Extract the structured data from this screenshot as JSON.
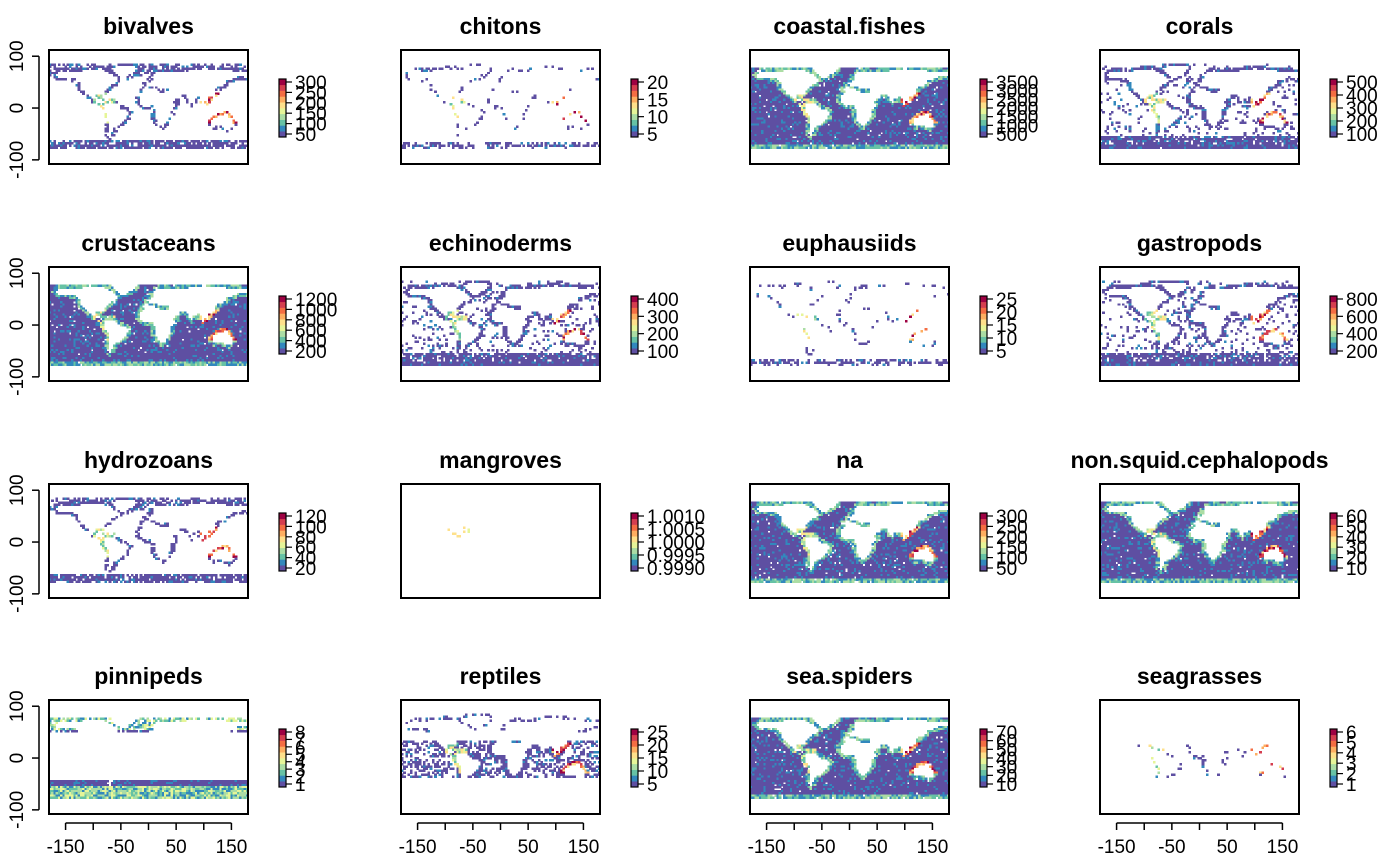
{
  "chart_data": {
    "type": "heatmap",
    "layout": {
      "rows": 4,
      "cols": 4
    },
    "xlim": [
      -180,
      180
    ],
    "ylim": [
      -90,
      90
    ],
    "xticks": [
      -150,
      -100,
      -50,
      0,
      50,
      100,
      150
    ],
    "xtick_labels": [
      "-150",
      "",
      "-50",
      "",
      "50",
      "",
      "150"
    ],
    "yticks": [
      100,
      0,
      -100
    ],
    "ytick_labels": [
      "100",
      "0",
      "-100"
    ],
    "colorscale": [
      "#5E4FA2",
      "#3288BD",
      "#66C2A5",
      "#ABDDA4",
      "#E6F598",
      "#FEE08B",
      "#FDAE61",
      "#F46D43",
      "#D53E4F",
      "#9E0142"
    ],
    "land_color": "#ffffff",
    "panels": [
      {
        "title": "bivalves",
        "legend_ticks": [
          "300",
          "250",
          "200",
          "150",
          "100",
          "50"
        ],
        "legend_range": [
          0,
          320
        ],
        "coverage": "coastal",
        "tropic_hotspot": true
      },
      {
        "title": "chitons",
        "legend_ticks": [
          "20",
          "15",
          "10",
          "5"
        ],
        "legend_range": [
          0,
          23
        ],
        "coverage": "sparse",
        "tropic_hotspot": true
      },
      {
        "title": "coastal.fishes",
        "legend_ticks": [
          "3500",
          "3000",
          "2500",
          "2000",
          "1500",
          "1000",
          "500"
        ],
        "legend_range": [
          0,
          3700
        ],
        "coverage": "full",
        "tropic_hotspot": true
      },
      {
        "title": "corals",
        "legend_ticks": [
          "500",
          "400",
          "300",
          "200",
          "100"
        ],
        "legend_range": [
          0,
          550
        ],
        "coverage": "moderate",
        "tropic_hotspot": true
      },
      {
        "title": "crustaceans",
        "legend_ticks": [
          "1200",
          "1000",
          "800",
          "600",
          "400",
          "200"
        ],
        "legend_range": [
          0,
          1300
        ],
        "coverage": "full",
        "tropic_hotspot": true
      },
      {
        "title": "echinoderms",
        "legend_ticks": [
          "400",
          "300",
          "200",
          "100"
        ],
        "legend_range": [
          0,
          450
        ],
        "coverage": "moderate",
        "tropic_hotspot": true
      },
      {
        "title": "euphausiids",
        "legend_ticks": [
          "25",
          "20",
          "15",
          "10",
          "5"
        ],
        "legend_range": [
          0,
          27
        ],
        "coverage": "sparse",
        "tropic_hotspot": true
      },
      {
        "title": "gastropods",
        "legend_ticks": [
          "800",
          "600",
          "400",
          "200"
        ],
        "legend_range": [
          0,
          880
        ],
        "coverage": "moderate",
        "tropic_hotspot": true
      },
      {
        "title": "hydrozoans",
        "legend_ticks": [
          "120",
          "100",
          "80",
          "60",
          "40",
          "20"
        ],
        "legend_range": [
          0,
          130
        ],
        "coverage": "coastal",
        "tropic_hotspot": true
      },
      {
        "title": "mangroves",
        "legend_ticks": [
          "1.0010",
          "1.0005",
          "1.0000",
          "0.9995",
          "0.9990"
        ],
        "legend_range": [
          0.999,
          1.001
        ],
        "coverage": "tiny",
        "tropic_hotspot": false
      },
      {
        "title": "na",
        "legend_ticks": [
          "300",
          "250",
          "200",
          "150",
          "100",
          "50"
        ],
        "legend_range": [
          0,
          320
        ],
        "coverage": "full",
        "tropic_hotspot": true
      },
      {
        "title": "non.squid.cephalopods",
        "legend_ticks": [
          "60",
          "50",
          "40",
          "30",
          "20",
          "10"
        ],
        "legend_range": [
          0,
          65
        ],
        "coverage": "full",
        "tropic_hotspot": true
      },
      {
        "title": "pinnipeds",
        "legend_ticks": [
          "8",
          "7",
          "6",
          "5",
          "4",
          "3",
          "2",
          "1"
        ],
        "legend_range": [
          0,
          8.5
        ],
        "coverage": "polar",
        "tropic_hotspot": false
      },
      {
        "title": "reptiles",
        "legend_ticks": [
          "25",
          "20",
          "15",
          "10",
          "5"
        ],
        "legend_range": [
          0,
          27
        ],
        "coverage": "tropical",
        "tropic_hotspot": true
      },
      {
        "title": "sea.spiders",
        "legend_ticks": [
          "70",
          "60",
          "50",
          "40",
          "30",
          "20",
          "10"
        ],
        "legend_range": [
          0,
          75
        ],
        "coverage": "full",
        "tropic_hotspot": true
      },
      {
        "title": "seagrasses",
        "legend_ticks": [
          "6",
          "5",
          "4",
          "3",
          "2",
          "1"
        ],
        "legend_range": [
          0,
          6.5
        ],
        "coverage": "sparse_points",
        "tropic_hotspot": true
      }
    ]
  }
}
